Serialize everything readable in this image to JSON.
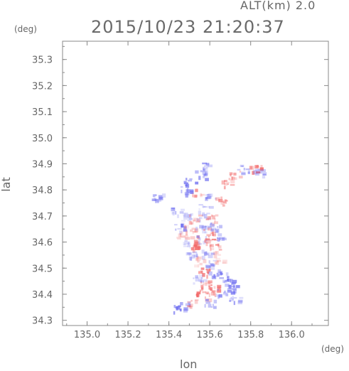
{
  "header": {
    "altitude": "ALT(km) 2.0",
    "timestamp": "2015/10/23 21:20:37"
  },
  "axes": {
    "y_unit": "(deg)",
    "x_unit": "(deg)",
    "y_label": "lat",
    "x_label": "lon"
  },
  "chart_data": {
    "type": "heatmap",
    "title": "2015/10/23 21:20:37",
    "xlabel": "lon",
    "ylabel": "lat",
    "xlim": [
      134.88,
      136.18
    ],
    "ylim": [
      34.28,
      35.37
    ],
    "x_ticks": [
      135.0,
      135.2,
      135.4,
      135.6,
      135.8,
      136.0
    ],
    "x_tick_labels": [
      "135.0",
      "135.2",
      "135.4",
      "135.6",
      "135.8",
      "136.0"
    ],
    "y_ticks": [
      34.3,
      34.4,
      34.5,
      34.6,
      34.7,
      34.8,
      34.9,
      35.0,
      35.1,
      35.2,
      35.3
    ],
    "y_tick_labels": [
      "34.3",
      "34.4",
      "34.5",
      "34.6",
      "34.7",
      "34.8",
      "34.9",
      "35.0",
      "35.1",
      "35.2",
      "35.3"
    ],
    "colors": {
      "positive": "#f26b6b",
      "negative": "#6f6ff0",
      "axis": "#888888"
    },
    "cells": [
      {
        "lon": 135.58,
        "lat": 34.89,
        "v": -0.6
      },
      {
        "lon": 135.55,
        "lat": 34.86,
        "v": -0.7
      },
      {
        "lon": 135.5,
        "lat": 34.83,
        "v": -0.8
      },
      {
        "lon": 135.48,
        "lat": 34.8,
        "v": -0.7
      },
      {
        "lon": 135.53,
        "lat": 34.79,
        "v": 0.5
      },
      {
        "lon": 135.6,
        "lat": 34.78,
        "v": -0.5
      },
      {
        "lon": 135.65,
        "lat": 34.76,
        "v": 0.6
      },
      {
        "lon": 135.68,
        "lat": 34.83,
        "v": 0.7
      },
      {
        "lon": 135.72,
        "lat": 34.86,
        "v": 0.6
      },
      {
        "lon": 135.76,
        "lat": 34.88,
        "v": -0.5
      },
      {
        "lon": 135.82,
        "lat": 34.88,
        "v": 0.9
      },
      {
        "lon": 135.84,
        "lat": 34.87,
        "v": -0.6
      },
      {
        "lon": 135.34,
        "lat": 34.77,
        "v": -0.6
      },
      {
        "lon": 135.43,
        "lat": 34.72,
        "v": -0.5
      },
      {
        "lon": 135.48,
        "lat": 34.7,
        "v": -0.4
      },
      {
        "lon": 135.52,
        "lat": 34.69,
        "v": 0.4
      },
      {
        "lon": 135.56,
        "lat": 34.7,
        "v": -0.3
      },
      {
        "lon": 135.6,
        "lat": 34.69,
        "v": 0.5
      },
      {
        "lon": 135.45,
        "lat": 34.66,
        "v": -0.7
      },
      {
        "lon": 135.5,
        "lat": 34.65,
        "v": 0.3
      },
      {
        "lon": 135.55,
        "lat": 34.65,
        "v": -0.4
      },
      {
        "lon": 135.59,
        "lat": 34.64,
        "v": 0.8
      },
      {
        "lon": 135.62,
        "lat": 34.66,
        "v": -0.5
      },
      {
        "lon": 135.52,
        "lat": 34.61,
        "v": 0.6
      },
      {
        "lon": 135.56,
        "lat": 34.61,
        "v": -0.5
      },
      {
        "lon": 135.6,
        "lat": 34.6,
        "v": 0.7
      },
      {
        "lon": 135.48,
        "lat": 34.6,
        "v": -0.3
      },
      {
        "lon": 135.53,
        "lat": 34.58,
        "v": 0.9
      },
      {
        "lon": 135.58,
        "lat": 34.56,
        "v": -0.6
      },
      {
        "lon": 135.62,
        "lat": 34.58,
        "v": 0.5
      },
      {
        "lon": 135.55,
        "lat": 34.53,
        "v": 0.4
      },
      {
        "lon": 135.6,
        "lat": 34.52,
        "v": -0.5
      },
      {
        "lon": 135.57,
        "lat": 34.49,
        "v": 0.8
      },
      {
        "lon": 135.62,
        "lat": 34.48,
        "v": -0.6
      },
      {
        "lon": 135.66,
        "lat": 34.47,
        "v": -0.8
      },
      {
        "lon": 135.69,
        "lat": 34.45,
        "v": -0.7
      },
      {
        "lon": 135.58,
        "lat": 34.44,
        "v": 0.5
      },
      {
        "lon": 135.62,
        "lat": 34.43,
        "v": 0.8
      },
      {
        "lon": 135.56,
        "lat": 34.41,
        "v": 0.9
      },
      {
        "lon": 135.6,
        "lat": 34.4,
        "v": 0.7
      },
      {
        "lon": 135.65,
        "lat": 34.41,
        "v": -0.5
      },
      {
        "lon": 135.7,
        "lat": 34.42,
        "v": -0.7
      },
      {
        "lon": 135.72,
        "lat": 34.39,
        "v": -0.6
      },
      {
        "lon": 135.6,
        "lat": 34.37,
        "v": -0.5
      },
      {
        "lon": 135.47,
        "lat": 34.36,
        "v": -0.6
      },
      {
        "lon": 135.43,
        "lat": 34.35,
        "v": -0.7
      },
      {
        "lon": 135.5,
        "lat": 34.37,
        "v": 0.4
      },
      {
        "lon": 135.54,
        "lat": 34.46,
        "v": -0.4
      },
      {
        "lon": 135.64,
        "lat": 34.54,
        "v": 0.3
      },
      {
        "lon": 135.51,
        "lat": 34.55,
        "v": -0.4
      },
      {
        "lon": 135.65,
        "lat": 34.62,
        "v": -0.4
      },
      {
        "lon": 135.46,
        "lat": 34.63,
        "v": 0.4
      },
      {
        "lon": 135.57,
        "lat": 34.73,
        "v": -0.3
      }
    ]
  }
}
